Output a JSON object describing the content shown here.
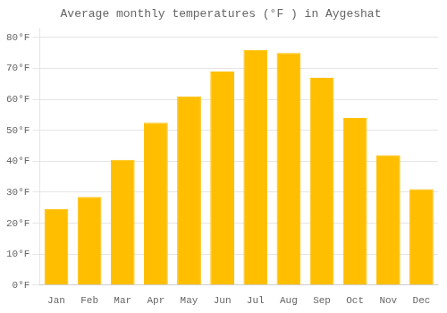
{
  "chart_data": {
    "type": "bar",
    "title": "Average monthly temperatures (°F ) in Aygeshat",
    "categories": [
      "Jan",
      "Feb",
      "Mar",
      "Apr",
      "May",
      "Jun",
      "Jul",
      "Aug",
      "Sep",
      "Oct",
      "Nov",
      "Dec"
    ],
    "values": [
      24.5,
      28.5,
      40.5,
      52.5,
      61,
      69,
      76,
      75,
      67,
      54,
      42,
      31
    ],
    "color": "#FFBE00",
    "ylim": [
      0,
      83
    ],
    "yticks": [
      {
        "value": 0,
        "label": "0°F"
      },
      {
        "value": 10,
        "label": "10°F"
      },
      {
        "value": 20,
        "label": "20°F"
      },
      {
        "value": 30,
        "label": "30°F"
      },
      {
        "value": 40,
        "label": "40°F"
      },
      {
        "value": 50,
        "label": "50°F"
      },
      {
        "value": 60,
        "label": "60°F"
      },
      {
        "value": 70,
        "label": "70°F"
      },
      {
        "value": 80,
        "label": "80°F"
      }
    ],
    "grid": true
  }
}
